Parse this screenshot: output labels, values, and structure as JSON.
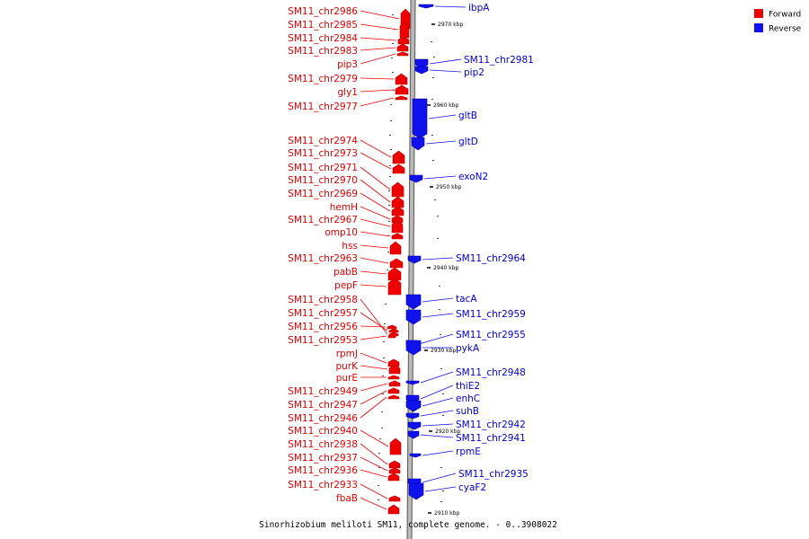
{
  "caption": "Sinorhizobium meliloti SM11, complete genome. - 0..3908022",
  "colors": {
    "forward": "#ee0000",
    "forward_dark": "#b80000",
    "reverse": "#1111ee",
    "reverse_dark": "#0000a0",
    "backbone": "#b9b9b9",
    "backbone_edge": "#555555"
  },
  "legend": [
    {
      "label": "Forward",
      "color": "#ee0000"
    },
    {
      "label": "Reverse",
      "color": "#1111ee"
    }
  ],
  "ticks": [
    "2970 kbp",
    "2960 kbp",
    "2950 kbp",
    "2940 kbp",
    "2930 kbp",
    "2920 kbp",
    "2910 kbp"
  ],
  "forward_genes": [
    "SM11_chr2986",
    "SM11_chr2985",
    "SM11_chr2984",
    "SM11_chr2983",
    "pip3",
    "SM11_chr2979",
    "gly1",
    "SM11_chr2977",
    "SM11_chr2974",
    "SM11_chr2973",
    "SM11_chr2971",
    "SM11_chr2970",
    "SM11_chr2969",
    "hemH",
    "SM11_chr2967",
    "omp10",
    "hss",
    "SM11_chr2963",
    "pabB",
    "pepF",
    "SM11_chr2958",
    "SM11_chr2957",
    "SM11_chr2956",
    "SM11_chr2953",
    "rpmJ",
    "purK",
    "purE",
    "SM11_chr2949",
    "SM11_chr2947",
    "SM11_chr2946",
    "SM11_chr2940",
    "SM11_chr2938",
    "SM11_chr2937",
    "SM11_chr2936",
    "SM11_chr2933",
    "fbaB"
  ],
  "reverse_genes": [
    "ibpA",
    "SM11_chr2981",
    "pip2",
    "gltB",
    "gltD",
    "exoN2",
    "SM11_chr2964",
    "tacA",
    "SM11_chr2959",
    "SM11_chr2955",
    "pykA",
    "SM11_chr2948",
    "thiE2",
    "enhC",
    "suhB",
    "SM11_chr2942",
    "SM11_chr2941",
    "rpmE",
    "SM11_chr2935",
    "cyaF2"
  ]
}
